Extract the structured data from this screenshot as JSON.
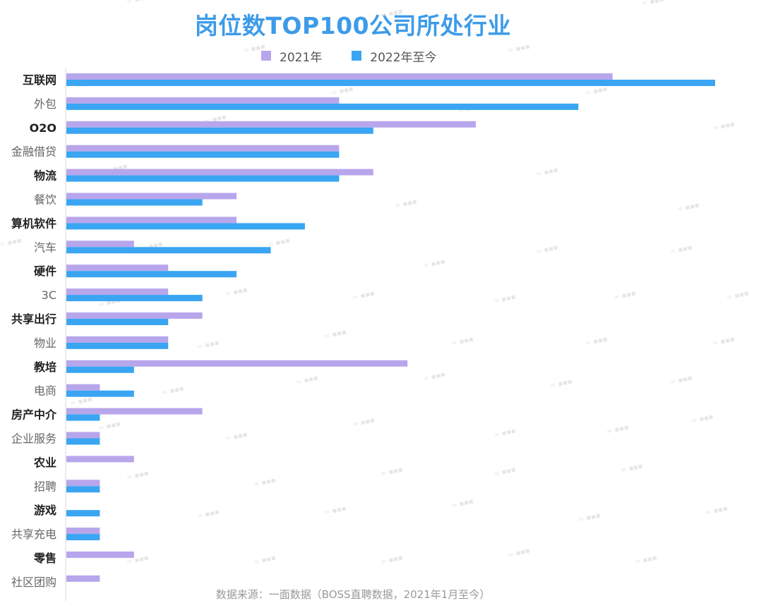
{
  "chart_data": {
    "type": "bar",
    "orientation": "horizontal",
    "title": "岗位数TOP100公司所处行业",
    "categories": [
      "互联网",
      "外包",
      "O2O",
      "金融借贷",
      "物流",
      "餐饮",
      "算机软件",
      "汽车",
      "硬件",
      "3C",
      "共享出行",
      "物业",
      "教培",
      "电商",
      "房产中介",
      "企业服务",
      "农业",
      "招聘",
      "游戏",
      "共享充电",
      "零售",
      "社区团购"
    ],
    "series": [
      {
        "name": "2021年",
        "color": "#b7a6ec",
        "values": [
          16,
          8,
          12,
          8,
          9,
          5,
          5,
          2,
          3,
          3,
          4,
          3,
          10,
          1,
          4,
          1,
          2,
          1,
          0,
          1,
          2,
          1
        ]
      },
      {
        "name": "2022年至今",
        "color": "#3aa5f2",
        "values": [
          19,
          15,
          9,
          8,
          8,
          4,
          7,
          6,
          5,
          4,
          3,
          3,
          2,
          2,
          1,
          1,
          0,
          1,
          1,
          1,
          0,
          0
        ]
      }
    ],
    "xlim": [
      0,
      19
    ],
    "grid": false,
    "legend": "top-center",
    "source": "数据来源：一面数据（BOSS直聘数据，2021年1月至今）",
    "label_style": [
      "bold",
      "normal",
      "bold",
      "normal",
      "bold",
      "normal",
      "bold",
      "normal",
      "bold",
      "normal",
      "bold",
      "normal",
      "bold",
      "normal",
      "bold",
      "normal",
      "bold",
      "normal",
      "bold",
      "normal",
      "bold",
      "normal"
    ]
  }
}
